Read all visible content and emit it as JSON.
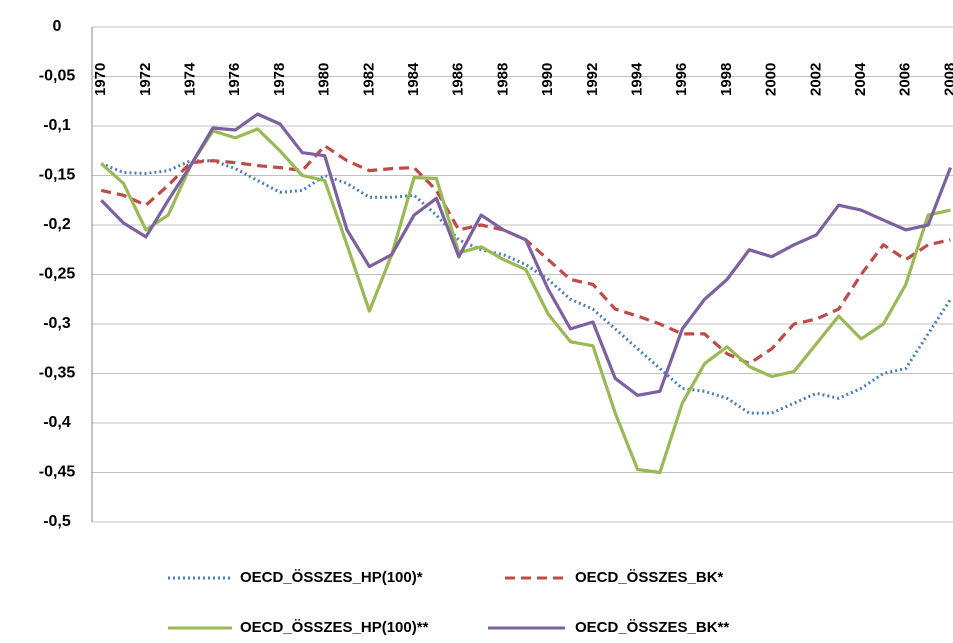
{
  "chart_data": {
    "type": "line",
    "categories": [
      "1970",
      null,
      "1972",
      null,
      "1974",
      null,
      "1976",
      null,
      "1978",
      null,
      "1980",
      null,
      "1982",
      null,
      "1984",
      null,
      "1986",
      null,
      "1988",
      null,
      "1990",
      null,
      "1992",
      null,
      "1994",
      null,
      "1996",
      null,
      "1998",
      null,
      "2000",
      null,
      "2002",
      null,
      "2004",
      null,
      "2006",
      null,
      "2008"
    ],
    "ylim": [
      -0.5,
      0
    ],
    "yticks": [
      0,
      {
        "value": -0.05,
        "label": "-0,05"
      },
      {
        "value": -0.1,
        "label": "-0,1"
      },
      {
        "value": -0.15,
        "label": "-0,15"
      },
      {
        "value": -0.2,
        "label": "-0,2"
      },
      {
        "value": -0.25,
        "label": "-0,25"
      },
      {
        "value": -0.3,
        "label": "-0,3"
      },
      {
        "value": -0.35,
        "label": "-0,35"
      },
      {
        "value": -0.4,
        "label": "-0,4"
      },
      {
        "value": -0.45,
        "label": "-0,45"
      },
      {
        "value": -0.5,
        "label": "-0,5"
      }
    ],
    "grid": true,
    "legend": "bottom",
    "series": [
      {
        "name": "OECD_ÖSSZES_HP(100)*",
        "color": "#4a7ebb",
        "dash": "dotted",
        "values": [
          -0.138,
          -0.147,
          -0.148,
          -0.145,
          -0.135,
          -0.135,
          -0.143,
          -0.155,
          -0.167,
          -0.165,
          -0.15,
          -0.158,
          -0.172,
          -0.172,
          -0.17,
          -0.19,
          -0.215,
          -0.225,
          -0.23,
          -0.24,
          -0.255,
          -0.275,
          -0.285,
          -0.305,
          -0.325,
          -0.345,
          -0.365,
          -0.368,
          -0.375,
          -0.39,
          -0.39,
          -0.38,
          -0.37,
          -0.375,
          -0.365,
          -0.35,
          -0.345,
          -0.31,
          -0.275
        ]
      },
      {
        "name": "OECD_ÖSSZES_BK*",
        "color": "#be4b48",
        "dash": "dashed",
        "values": [
          -0.165,
          -0.17,
          -0.18,
          -0.16,
          -0.137,
          -0.135,
          -0.137,
          -0.14,
          -0.142,
          -0.145,
          -0.12,
          -0.135,
          -0.145,
          -0.143,
          -0.142,
          -0.165,
          -0.205,
          -0.2,
          -0.205,
          -0.215,
          -0.235,
          -0.255,
          -0.26,
          -0.285,
          -0.292,
          -0.3,
          -0.31,
          -0.31,
          -0.33,
          -0.34,
          -0.325,
          -0.3,
          -0.295,
          -0.285,
          -0.25,
          -0.22,
          -0.235,
          -0.22,
          -0.215
        ]
      },
      {
        "name": "OECD_ÖSSZES_HP(100)**",
        "color": "#98b954",
        "dash": "solid",
        "values": [
          -0.138,
          -0.158,
          -0.205,
          -0.19,
          -0.14,
          -0.105,
          -0.112,
          -0.103,
          -0.125,
          -0.15,
          -0.155,
          -0.22,
          -0.287,
          -0.23,
          -0.152,
          -0.153,
          -0.228,
          -0.222,
          -0.235,
          -0.245,
          -0.29,
          -0.318,
          -0.322,
          -0.39,
          -0.447,
          -0.45,
          -0.38,
          -0.34,
          -0.323,
          -0.343,
          -0.353,
          -0.348,
          -0.32,
          -0.292,
          -0.315,
          -0.3,
          -0.26,
          -0.19,
          -0.185
        ]
      },
      {
        "name": "OECD_ÖSSZES_BK**",
        "color": "#7d60a0",
        "dash": "solid",
        "values": [
          -0.175,
          -0.198,
          -0.212,
          -0.175,
          -0.14,
          -0.102,
          -0.104,
          -0.088,
          -0.098,
          -0.127,
          -0.13,
          -0.205,
          -0.242,
          -0.23,
          -0.19,
          -0.173,
          -0.232,
          -0.19,
          -0.205,
          -0.215,
          -0.265,
          -0.305,
          -0.298,
          -0.355,
          -0.372,
          -0.368,
          -0.305,
          -0.275,
          -0.255,
          -0.225,
          -0.232,
          -0.22,
          -0.21,
          -0.18,
          -0.185,
          -0.195,
          -0.205,
          -0.2,
          -0.142
        ]
      }
    ]
  }
}
